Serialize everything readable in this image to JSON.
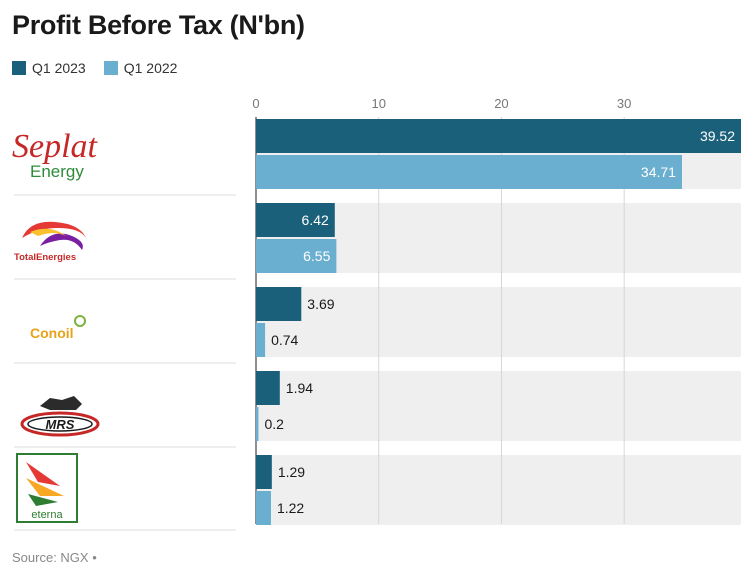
{
  "title": "Profit Before Tax (N'bn)",
  "source": "Source: NGX •",
  "colors": {
    "q1_2023": "#1b607a",
    "q1_2022": "#6aafcf",
    "band": "#efefef",
    "grid": "#d6d6d6"
  },
  "legend": [
    {
      "name": "Q1 2023",
      "color": "#1b607a"
    },
    {
      "name": "Q1 2022",
      "color": "#6aafcf"
    }
  ],
  "logos": {
    "seplat": {
      "line1": "Seplat",
      "line2": "Energy"
    },
    "total": {
      "text": "TotalEnergies"
    },
    "conoil": {
      "text": "Conoil"
    },
    "mrs": {
      "text": "MRS"
    },
    "eterna": {
      "text": "eterna"
    }
  },
  "chart_data": {
    "type": "bar",
    "orientation": "horizontal",
    "title": "Profit Before Tax (N'bn)",
    "categories": [
      "Seplat Energy",
      "TotalEnergies",
      "Conoil",
      "MRS",
      "Eterna"
    ],
    "series": [
      {
        "name": "Q1 2023",
        "values": [
          39.52,
          6.42,
          3.69,
          1.94,
          1.29
        ],
        "labels": [
          "39.52",
          "6.42",
          "3.69",
          "1.94",
          "1.29"
        ]
      },
      {
        "name": "Q1 2022",
        "values": [
          34.71,
          6.55,
          0.74,
          0.2,
          1.22
        ],
        "labels": [
          "34.71",
          "6.55",
          "0.74",
          "0.2",
          "1.22"
        ]
      }
    ],
    "xticks": [
      0,
      10,
      20,
      30
    ],
    "xtick_labels": [
      "0",
      "10",
      "20",
      "30"
    ],
    "xlim": [
      0,
      39.52
    ],
    "grid": true,
    "legend_position": "top-left"
  }
}
